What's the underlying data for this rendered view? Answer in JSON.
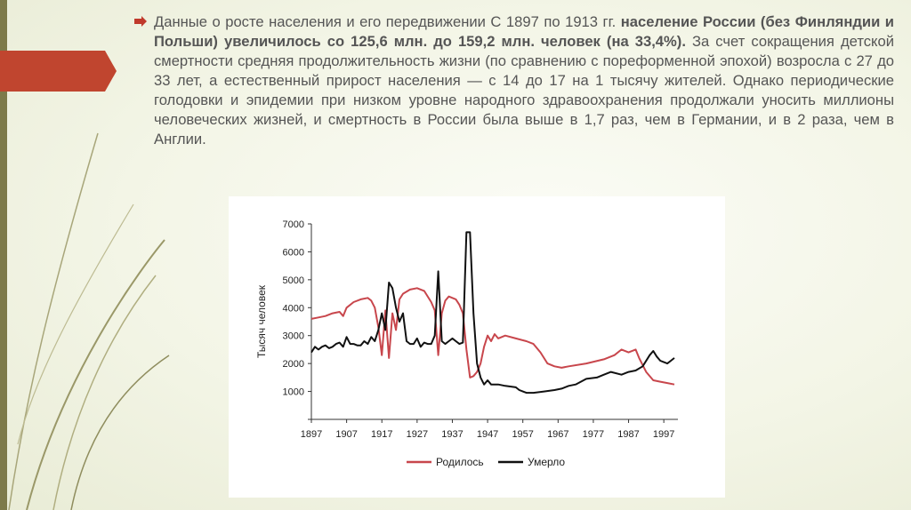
{
  "slide": {
    "paragraph": {
      "part1": "Данные о росте населения и его передвижении С 1897 по 1913 гг. ",
      "part2_bold": "население России (без Финляндии и Польши) увеличилось со 125,6 млн. до 159,2 млн. человек (на 33,4%).",
      "part3": " За счет сокращения детской смертности средняя продолжительность жизни (по сравнению с пореформенной эпохой) возросла с 27 до 33 лет, а естественный прирост населения — с 14 до 17 на 1 тысячу жителей. Однако периодические голодовки и эпидемии при низком уровне народного здравоохранения продолжали уносить миллионы человеческих жизней, и смертность в России была выше в 1,7 раз, чем в Германии, и в 2 раза, чем в Англии."
    },
    "colors": {
      "accent_red": "#c0392b",
      "deco_olive": "#7d7a4a"
    },
    "icons": {
      "bullet": "arrow-bullet-icon"
    }
  },
  "chart_data": {
    "type": "line",
    "ylabel": "Тысяч человек",
    "xlabel": "",
    "xlim": [
      1897,
      2001
    ],
    "ylim": [
      0,
      7000
    ],
    "xticks": [
      1897,
      1907,
      1917,
      1927,
      1937,
      1947,
      1957,
      1967,
      1977,
      1987,
      1997
    ],
    "yticks": [
      0,
      1000,
      2000,
      3000,
      4000,
      5000,
      6000,
      7000
    ],
    "legend_position": "bottom",
    "series": [
      {
        "name": "Родилось",
        "color": "#c8464c",
        "x": [
          1897,
          1899,
          1901,
          1903,
          1905,
          1906,
          1907,
          1909,
          1911,
          1913,
          1914,
          1915,
          1916,
          1917,
          1918,
          1919,
          1920,
          1921,
          1922,
          1923,
          1925,
          1927,
          1929,
          1931,
          1932,
          1933,
          1934,
          1935,
          1936,
          1937,
          1938,
          1939,
          1940,
          1941,
          1942,
          1943,
          1944,
          1945,
          1946,
          1947,
          1948,
          1949,
          1950,
          1952,
          1955,
          1958,
          1960,
          1962,
          1964,
          1966,
          1968,
          1970,
          1975,
          1980,
          1983,
          1985,
          1987,
          1989,
          1990,
          1992,
          1994,
          1996,
          1998,
          2000
        ],
        "y": [
          3600,
          3650,
          3700,
          3800,
          3850,
          3700,
          4000,
          4200,
          4300,
          4350,
          4250,
          4000,
          3300,
          2300,
          3900,
          2200,
          3800,
          3200,
          4300,
          4500,
          4650,
          4700,
          4600,
          4200,
          3900,
          2300,
          3800,
          4250,
          4400,
          4350,
          4300,
          4100,
          3800,
          2500,
          1500,
          1550,
          1700,
          2000,
          2600,
          3000,
          2800,
          3050,
          2900,
          3000,
          2900,
          2800,
          2700,
          2400,
          2000,
          1900,
          1850,
          1900,
          2000,
          2150,
          2300,
          2500,
          2400,
          2500,
          2200,
          1700,
          1400,
          1350,
          1300,
          1250
        ]
      },
      {
        "name": "Умерло",
        "color": "#111111",
        "x": [
          1897,
          1898,
          1899,
          1900,
          1901,
          1902,
          1903,
          1904,
          1905,
          1906,
          1907,
          1908,
          1909,
          1910,
          1911,
          1912,
          1913,
          1914,
          1915,
          1916,
          1917,
          1918,
          1919,
          1920,
          1921,
          1922,
          1923,
          1924,
          1925,
          1926,
          1927,
          1928,
          1929,
          1930,
          1931,
          1932,
          1933,
          1934,
          1935,
          1936,
          1937,
          1938,
          1939,
          1940,
          1941,
          1942,
          1943,
          1944,
          1945,
          1946,
          1947,
          1948,
          1950,
          1952,
          1955,
          1956,
          1957,
          1958,
          1960,
          1963,
          1966,
          1968,
          1970,
          1972,
          1975,
          1978,
          1980,
          1982,
          1985,
          1987,
          1989,
          1991,
          1993,
          1994,
          1995,
          1996,
          1997,
          1998,
          1999,
          2000
        ],
        "y": [
          2400,
          2600,
          2500,
          2600,
          2650,
          2550,
          2600,
          2700,
          2750,
          2600,
          2950,
          2700,
          2700,
          2650,
          2650,
          2800,
          2700,
          2950,
          2800,
          3200,
          3800,
          3200,
          4900,
          4700,
          4000,
          3500,
          3800,
          2800,
          2700,
          2700,
          2900,
          2600,
          2750,
          2700,
          2700,
          3000,
          5300,
          2800,
          2700,
          2800,
          2900,
          2800,
          2700,
          2750,
          6700,
          6700,
          3800,
          2000,
          1500,
          1250,
          1400,
          1250,
          1250,
          1200,
          1150,
          1050,
          1000,
          950,
          950,
          1000,
          1050,
          1100,
          1200,
          1250,
          1450,
          1500,
          1600,
          1700,
          1600,
          1700,
          1750,
          1900,
          2300,
          2450,
          2250,
          2100,
          2050,
          2000,
          2100,
          2200
        ]
      }
    ]
  }
}
